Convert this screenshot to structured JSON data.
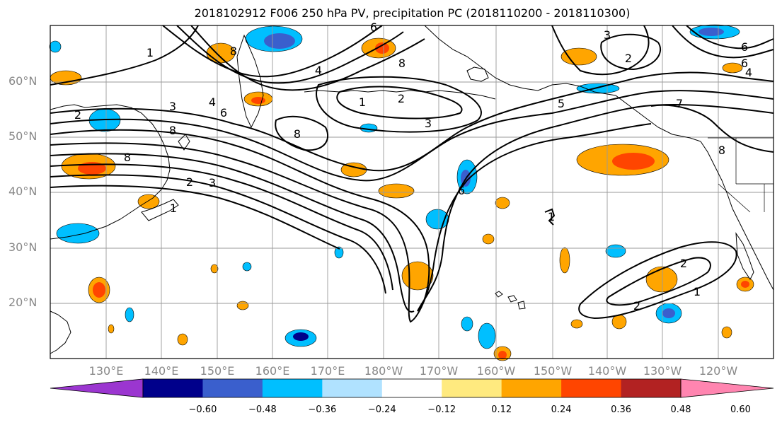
{
  "title": "2018102912 F006 250 hPa PV, precipitation PC (2018110200 - 2018110300)",
  "lat_labels": [
    "60°N",
    "50°N",
    "40°N",
    "30°N",
    "20°N"
  ],
  "lon_labels": [
    "130°E",
    "140°E",
    "150°E",
    "160°E",
    "170°E",
    "180°W",
    "170°W",
    "160°W",
    "150°W",
    "140°W",
    "130°W",
    "120°W"
  ],
  "colorbar": {
    "ticks": [
      "−0.60",
      "−0.48",
      "−0.36",
      "−0.24",
      "−0.12",
      "0.12",
      "0.24",
      "0.36",
      "0.48",
      "0.60"
    ],
    "colors": [
      "#9b36d0",
      "#00008b",
      "#3a5fcd",
      "#00bfff",
      "#b0e2ff",
      "#ffffff",
      "#ffea7f",
      "#ffa500",
      "#ff4500",
      "#b22222",
      "#ff85b0"
    ]
  },
  "contour_labels": [
    "1",
    "2",
    "3",
    "4",
    "5",
    "6",
    "7",
    "8"
  ],
  "colors": {
    "contour": "#000000",
    "grid": "#999999",
    "coast": "#000000"
  }
}
